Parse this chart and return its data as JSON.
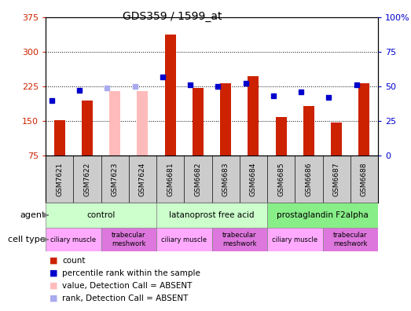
{
  "title": "GDS359 / 1599_at",
  "samples": [
    "GSM7621",
    "GSM7622",
    "GSM7623",
    "GSM7624",
    "GSM6681",
    "GSM6682",
    "GSM6683",
    "GSM6684",
    "GSM6685",
    "GSM6686",
    "GSM6687",
    "GSM6688"
  ],
  "count_values": [
    152,
    195,
    null,
    null,
    337,
    222,
    232,
    248,
    158,
    182,
    147,
    232
  ],
  "count_absent": [
    null,
    null,
    215,
    215,
    null,
    null,
    null,
    null,
    null,
    null,
    null,
    null
  ],
  "rank_values": [
    40,
    47,
    null,
    null,
    57,
    51,
    50,
    52,
    43,
    46,
    42,
    51
  ],
  "rank_absent": [
    null,
    null,
    49,
    50,
    null,
    null,
    null,
    null,
    null,
    null,
    null,
    null
  ],
  "ylim_left": [
    75,
    375
  ],
  "ylim_right": [
    0,
    100
  ],
  "yticks_left": [
    75,
    150,
    225,
    300,
    375
  ],
  "yticks_right": [
    0,
    25,
    50,
    75,
    100
  ],
  "ytick_labels_right": [
    "0",
    "25",
    "50",
    "75",
    "100%"
  ],
  "color_count": "#cc2200",
  "color_count_absent": "#ffbbbb",
  "color_rank": "#0000cc",
  "color_rank_absent": "#aaaaee",
  "agent_groups": [
    {
      "label": "control",
      "start": 0,
      "end": 3,
      "color": "#ccffcc"
    },
    {
      "label": "latanoprost free acid",
      "start": 4,
      "end": 7,
      "color": "#ccffcc"
    },
    {
      "label": "prostaglandin F2alpha",
      "start": 8,
      "end": 11,
      "color": "#88ee88"
    }
  ],
  "cell_type_groups": [
    {
      "label": "ciliary muscle",
      "start": 0,
      "end": 1,
      "color": "#ffaaff"
    },
    {
      "label": "trabecular\nmeshwork",
      "start": 2,
      "end": 3,
      "color": "#dd77dd"
    },
    {
      "label": "ciliary muscle",
      "start": 4,
      "end": 5,
      "color": "#ffaaff"
    },
    {
      "label": "trabecular\nmeshwork",
      "start": 6,
      "end": 7,
      "color": "#dd77dd"
    },
    {
      "label": "ciliary muscle",
      "start": 8,
      "end": 9,
      "color": "#ffaaff"
    },
    {
      "label": "trabecular\nmeshwork",
      "start": 10,
      "end": 11,
      "color": "#dd77dd"
    }
  ],
  "bar_width": 0.4,
  "rank_marker_size": 5,
  "tick_label_color_left": "#cc2200",
  "tick_label_color_right": "#0000cc",
  "title_fontsize": 10,
  "chart_bg": "#ffffff",
  "xtick_bg": "#cccccc"
}
